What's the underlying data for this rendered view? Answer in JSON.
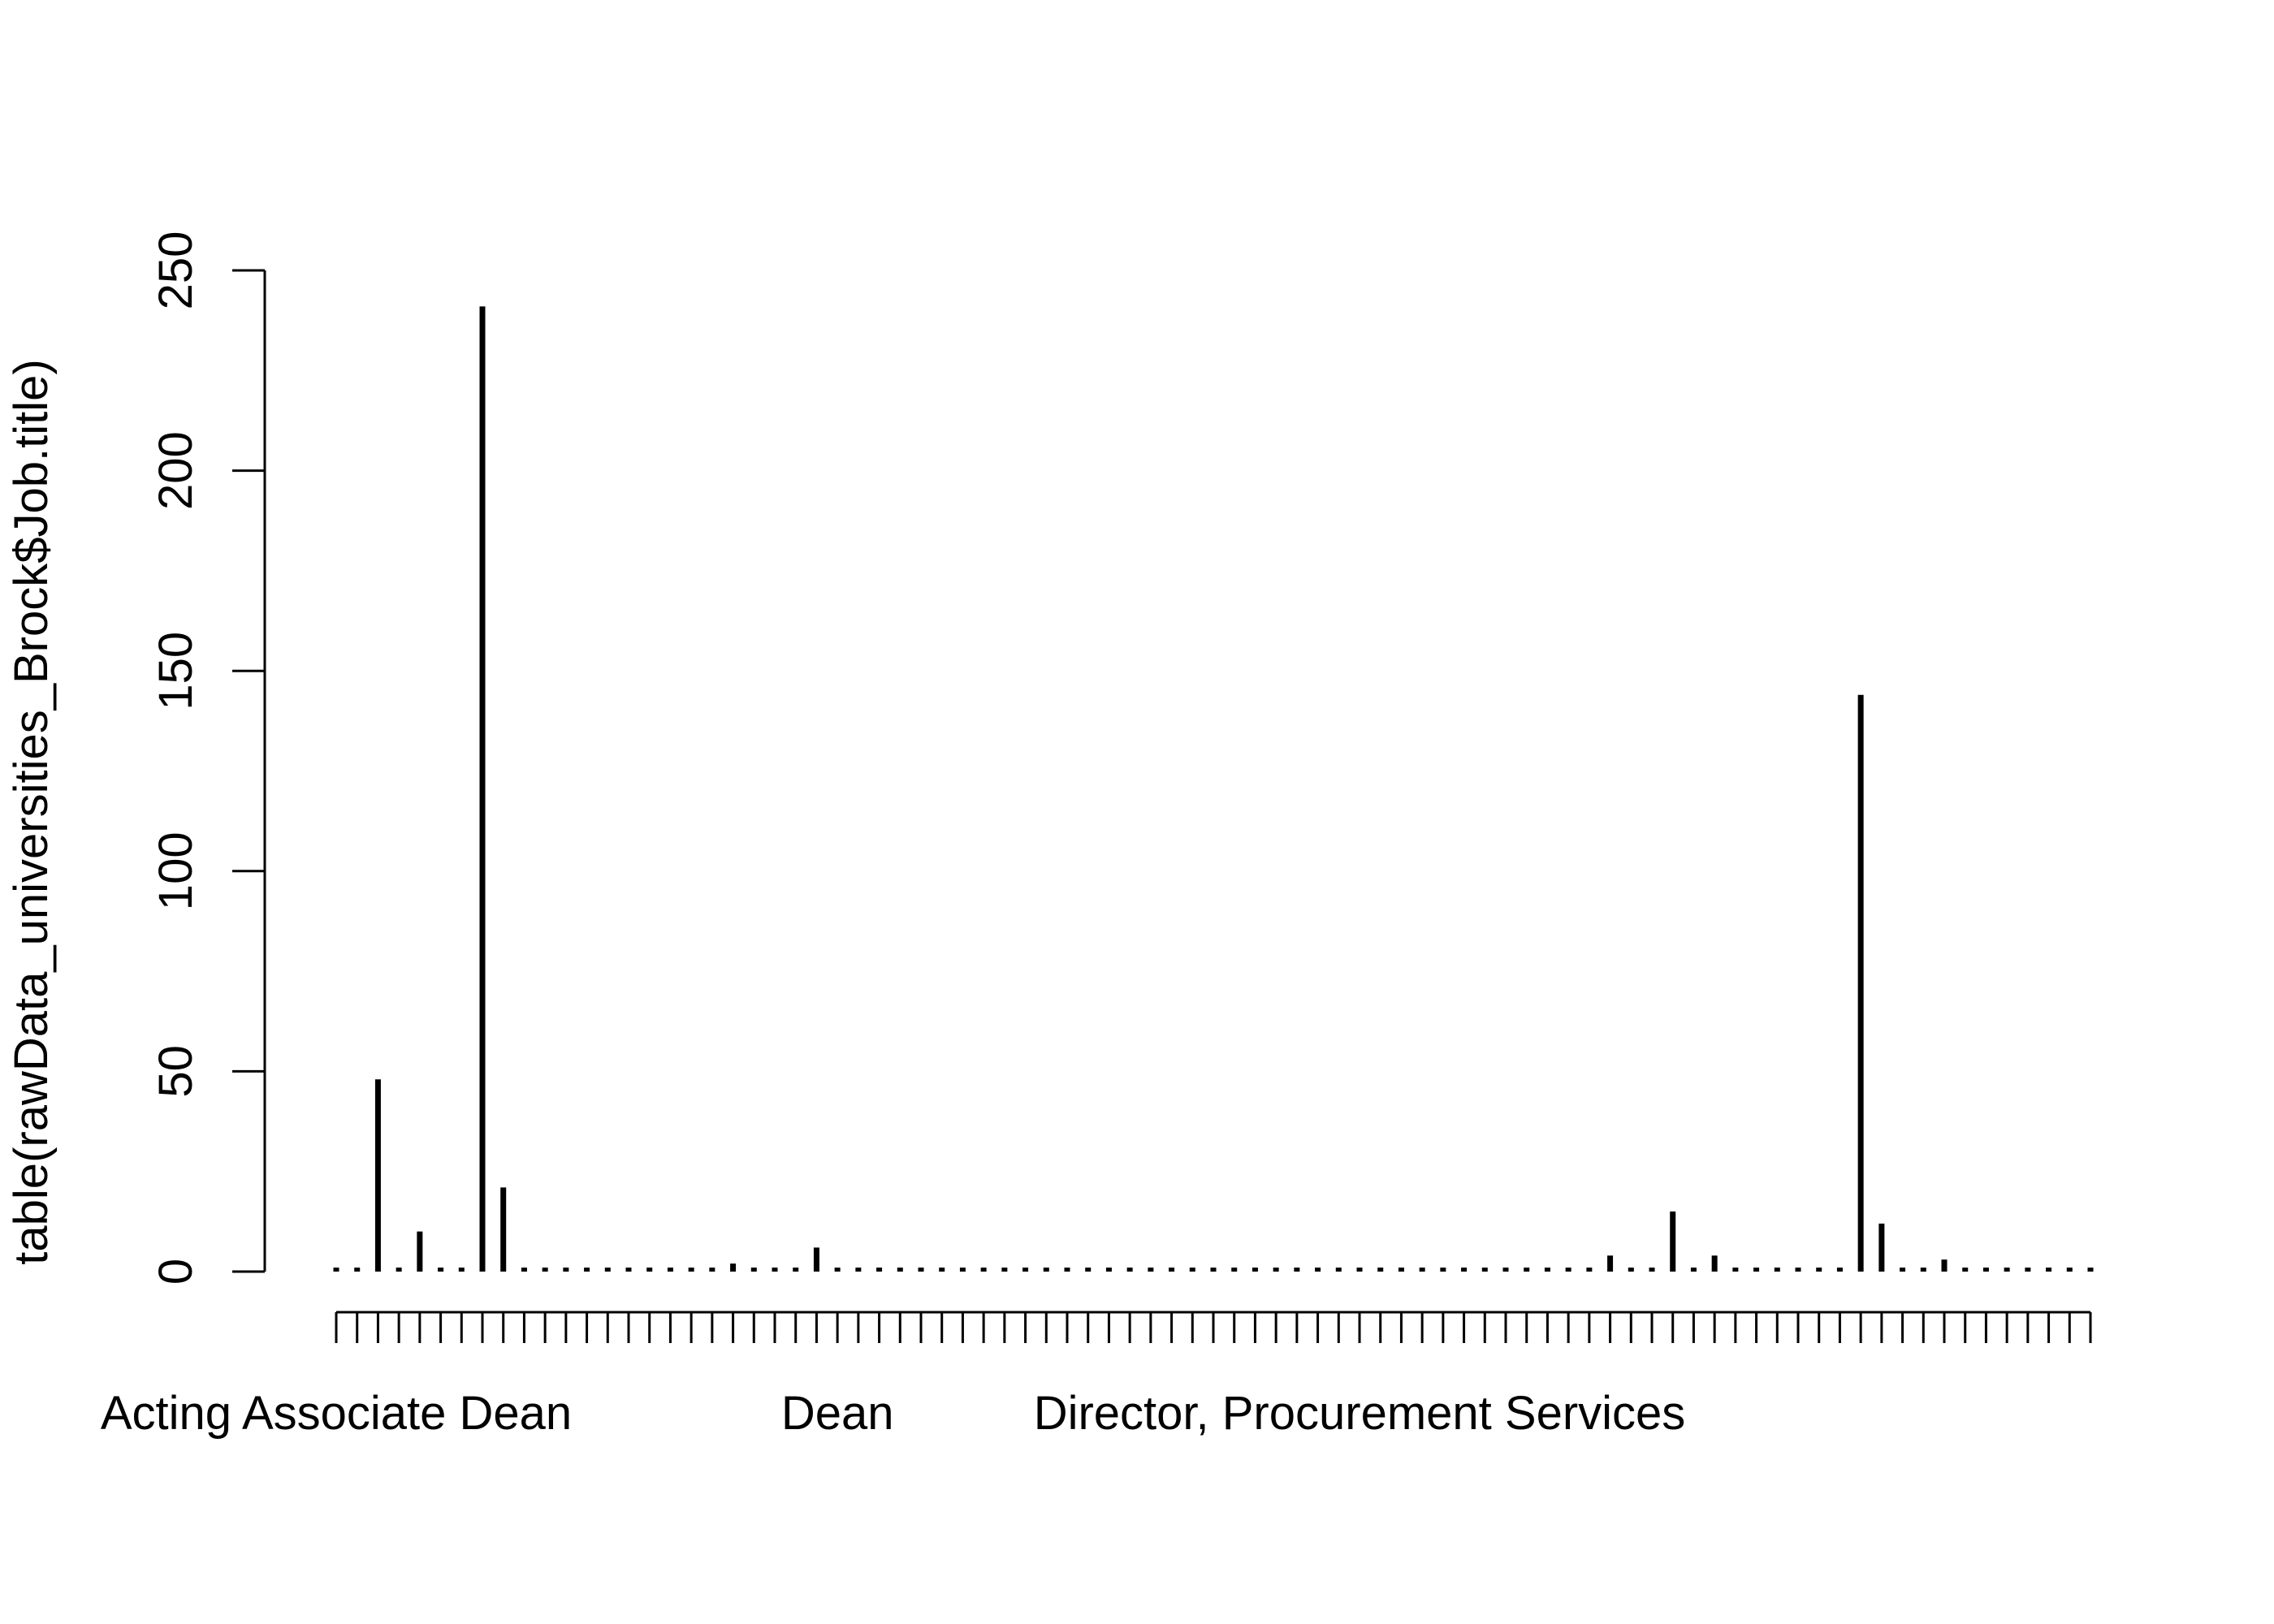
{
  "chart_data": {
    "type": "bar",
    "style": "stick (type h) plot of a frequency table",
    "xlabel": "",
    "ylabel": "table(rawData_universities_Brock$Job.title)",
    "ylim": [
      0,
      250
    ],
    "y_ticks": [
      "0",
      "50",
      "100",
      "150",
      "200",
      "250"
    ],
    "x_tick_labels": [
      {
        "index": 0,
        "label": "Acting Associate Dean"
      },
      {
        "index": 24,
        "label": "Dean"
      },
      {
        "index": 49,
        "label": "Director, Procurement Services"
      }
    ],
    "category_count": 85,
    "values": [
      1,
      1,
      48,
      1,
      10,
      1,
      1,
      241,
      21,
      1,
      1,
      1,
      1,
      1,
      1,
      1,
      1,
      1,
      1,
      2,
      1,
      1,
      1,
      6,
      1,
      1,
      1,
      1,
      1,
      1,
      1,
      1,
      1,
      1,
      1,
      1,
      1,
      1,
      1,
      1,
      1,
      1,
      1,
      1,
      1,
      1,
      1,
      1,
      1,
      1,
      1,
      1,
      1,
      1,
      1,
      1,
      1,
      1,
      1,
      1,
      1,
      4,
      1,
      1,
      15,
      1,
      4,
      1,
      1,
      1,
      1,
      1,
      1,
      144,
      12,
      1,
      1,
      3,
      1,
      1,
      1,
      1,
      1,
      1,
      1
    ],
    "grid": false,
    "legend": "none",
    "colors": {
      "line": "#000000",
      "background": "#ffffff"
    }
  }
}
